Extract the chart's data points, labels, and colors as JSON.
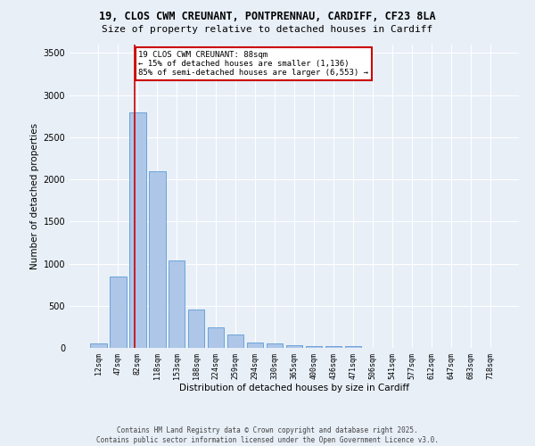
{
  "title1": "19, CLOS CWM CREUNANT, PONTPRENNAU, CARDIFF, CF23 8LA",
  "title2": "Size of property relative to detached houses in Cardiff",
  "xlabel": "Distribution of detached houses by size in Cardiff",
  "ylabel": "Number of detached properties",
  "categories": [
    "12sqm",
    "47sqm",
    "82sqm",
    "118sqm",
    "153sqm",
    "188sqm",
    "224sqm",
    "259sqm",
    "294sqm",
    "330sqm",
    "365sqm",
    "400sqm",
    "436sqm",
    "471sqm",
    "506sqm",
    "541sqm",
    "577sqm",
    "612sqm",
    "647sqm",
    "683sqm",
    "718sqm"
  ],
  "values": [
    50,
    850,
    2800,
    2100,
    1040,
    460,
    240,
    160,
    65,
    55,
    35,
    25,
    20,
    18,
    5,
    3,
    2,
    2,
    1,
    1,
    1
  ],
  "bar_color": "#aec6e8",
  "bar_edge_color": "#5b9bd5",
  "vline_color": "#cc0000",
  "vline_pos": 1.85,
  "annotation_text": "19 CLOS CWM CREUNANT: 88sqm\n← 15% of detached houses are smaller (1,136)\n85% of semi-detached houses are larger (6,553) →",
  "annotation_box_edgecolor": "#cc0000",
  "annotation_bg": "#ffffff",
  "ylim": [
    0,
    3600
  ],
  "yticks": [
    0,
    500,
    1000,
    1500,
    2000,
    2500,
    3000,
    3500
  ],
  "footer1": "Contains HM Land Registry data © Crown copyright and database right 2025.",
  "footer2": "Contains public sector information licensed under the Open Government Licence v3.0.",
  "bg_color": "#e8eff7"
}
